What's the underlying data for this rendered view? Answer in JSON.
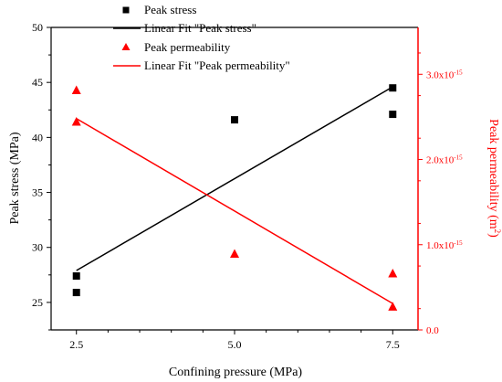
{
  "chart_data": {
    "type": "scatter",
    "xlabel": "Confining pressure (MPa)",
    "ylabel": "Peak stress (MPa)",
    "y2label_base": "Peak permeability (m",
    "y2label_sup": "2",
    "y2label_end": ")",
    "xlim": [
      2.1,
      7.9
    ],
    "ylim": [
      22.5,
      50
    ],
    "y2lim": [
      0,
      3.55e-15
    ],
    "x_ticks": [
      2.5,
      5.0,
      7.5
    ],
    "x_tick_labels": [
      "2.5",
      "5.0",
      "7.5"
    ],
    "y_ticks": [
      25,
      30,
      35,
      40,
      45,
      50
    ],
    "y_tick_labels": [
      "25",
      "30",
      "35",
      "40",
      "45",
      "50"
    ],
    "y2_ticks": [
      0,
      1e-15,
      2e-15,
      3e-15
    ],
    "y2_tick_labels": [
      {
        "base": "0.0",
        "sup": ""
      },
      {
        "base": "1.0x10",
        "sup": "-15"
      },
      {
        "base": "2.0x10",
        "sup": "-15"
      },
      {
        "base": "3.0x10",
        "sup": "-15"
      }
    ],
    "grid": false,
    "legend_position": "top-center",
    "series": [
      {
        "name": "Peak stress",
        "axis": "left",
        "marker": "square",
        "color": "#000000",
        "points": [
          [
            2.5,
            27.4
          ],
          [
            2.5,
            25.9
          ],
          [
            5.0,
            41.6
          ],
          [
            7.5,
            44.5
          ],
          [
            7.5,
            42.1
          ]
        ]
      },
      {
        "name": "Linear Fit \"Peak stress\"",
        "axis": "left",
        "kind": "line",
        "color": "#000000",
        "points": [
          [
            2.5,
            27.9
          ],
          [
            7.5,
            44.6
          ]
        ]
      },
      {
        "name": "Peak permeability",
        "axis": "right",
        "marker": "triangle",
        "color": "#ff0000",
        "points": [
          [
            2.5,
            2.81e-15
          ],
          [
            2.5,
            2.44e-15
          ],
          [
            5.0,
            8.9e-16
          ],
          [
            7.5,
            6.6e-16
          ],
          [
            7.5,
            2.7e-16
          ]
        ]
      },
      {
        "name": "Linear Fit \"Peak permeability\"",
        "axis": "right",
        "kind": "line",
        "color": "#ff0000",
        "points": [
          [
            2.5,
            2.48e-15
          ],
          [
            7.5,
            3.1e-16
          ]
        ]
      }
    ]
  }
}
